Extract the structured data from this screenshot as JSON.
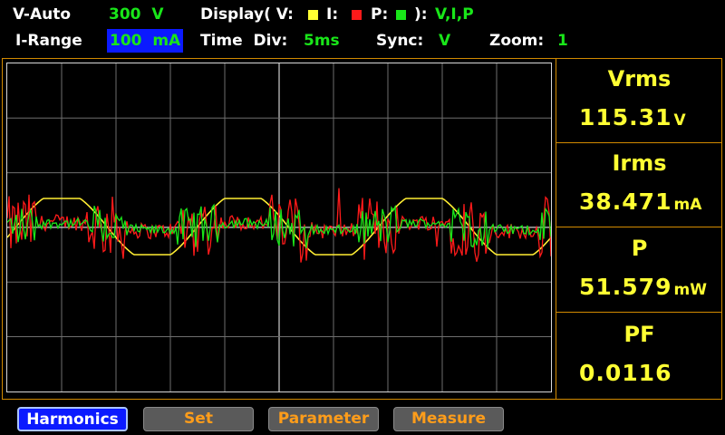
{
  "header": {
    "v_mode": "V-Auto",
    "v_range": "300  V",
    "display_label": "Display( V:",
    "display_i_label": "I:",
    "display_p_label": "P:",
    "display_close": "):",
    "display_value": "V,I,P",
    "i_range_label": "I-Range",
    "i_range_value": "100  mA",
    "time_div_label": "Time  Div:",
    "time_div_value": "5ms",
    "sync_label": "Sync:",
    "sync_value": "V",
    "zoom_label": "Zoom:",
    "zoom_value": "1",
    "colors": {
      "v": "#ffff33",
      "i": "#ff1a1a",
      "p": "#19e619"
    }
  },
  "measurements": [
    {
      "label": "Vrms",
      "value": "115.31",
      "unit": "V"
    },
    {
      "label": "Irms",
      "value": "38.471",
      "unit": "mA"
    },
    {
      "label": "P",
      "value": "51.579",
      "unit": "mW"
    },
    {
      "label": "PF",
      "value": "0.0116",
      "unit": ""
    }
  ],
  "softkeys": [
    {
      "label": "Harmonics",
      "active": true
    },
    {
      "label": "Set",
      "active": false
    },
    {
      "label": "Parameter",
      "active": false
    },
    {
      "label": "Measure",
      "active": false
    }
  ]
}
